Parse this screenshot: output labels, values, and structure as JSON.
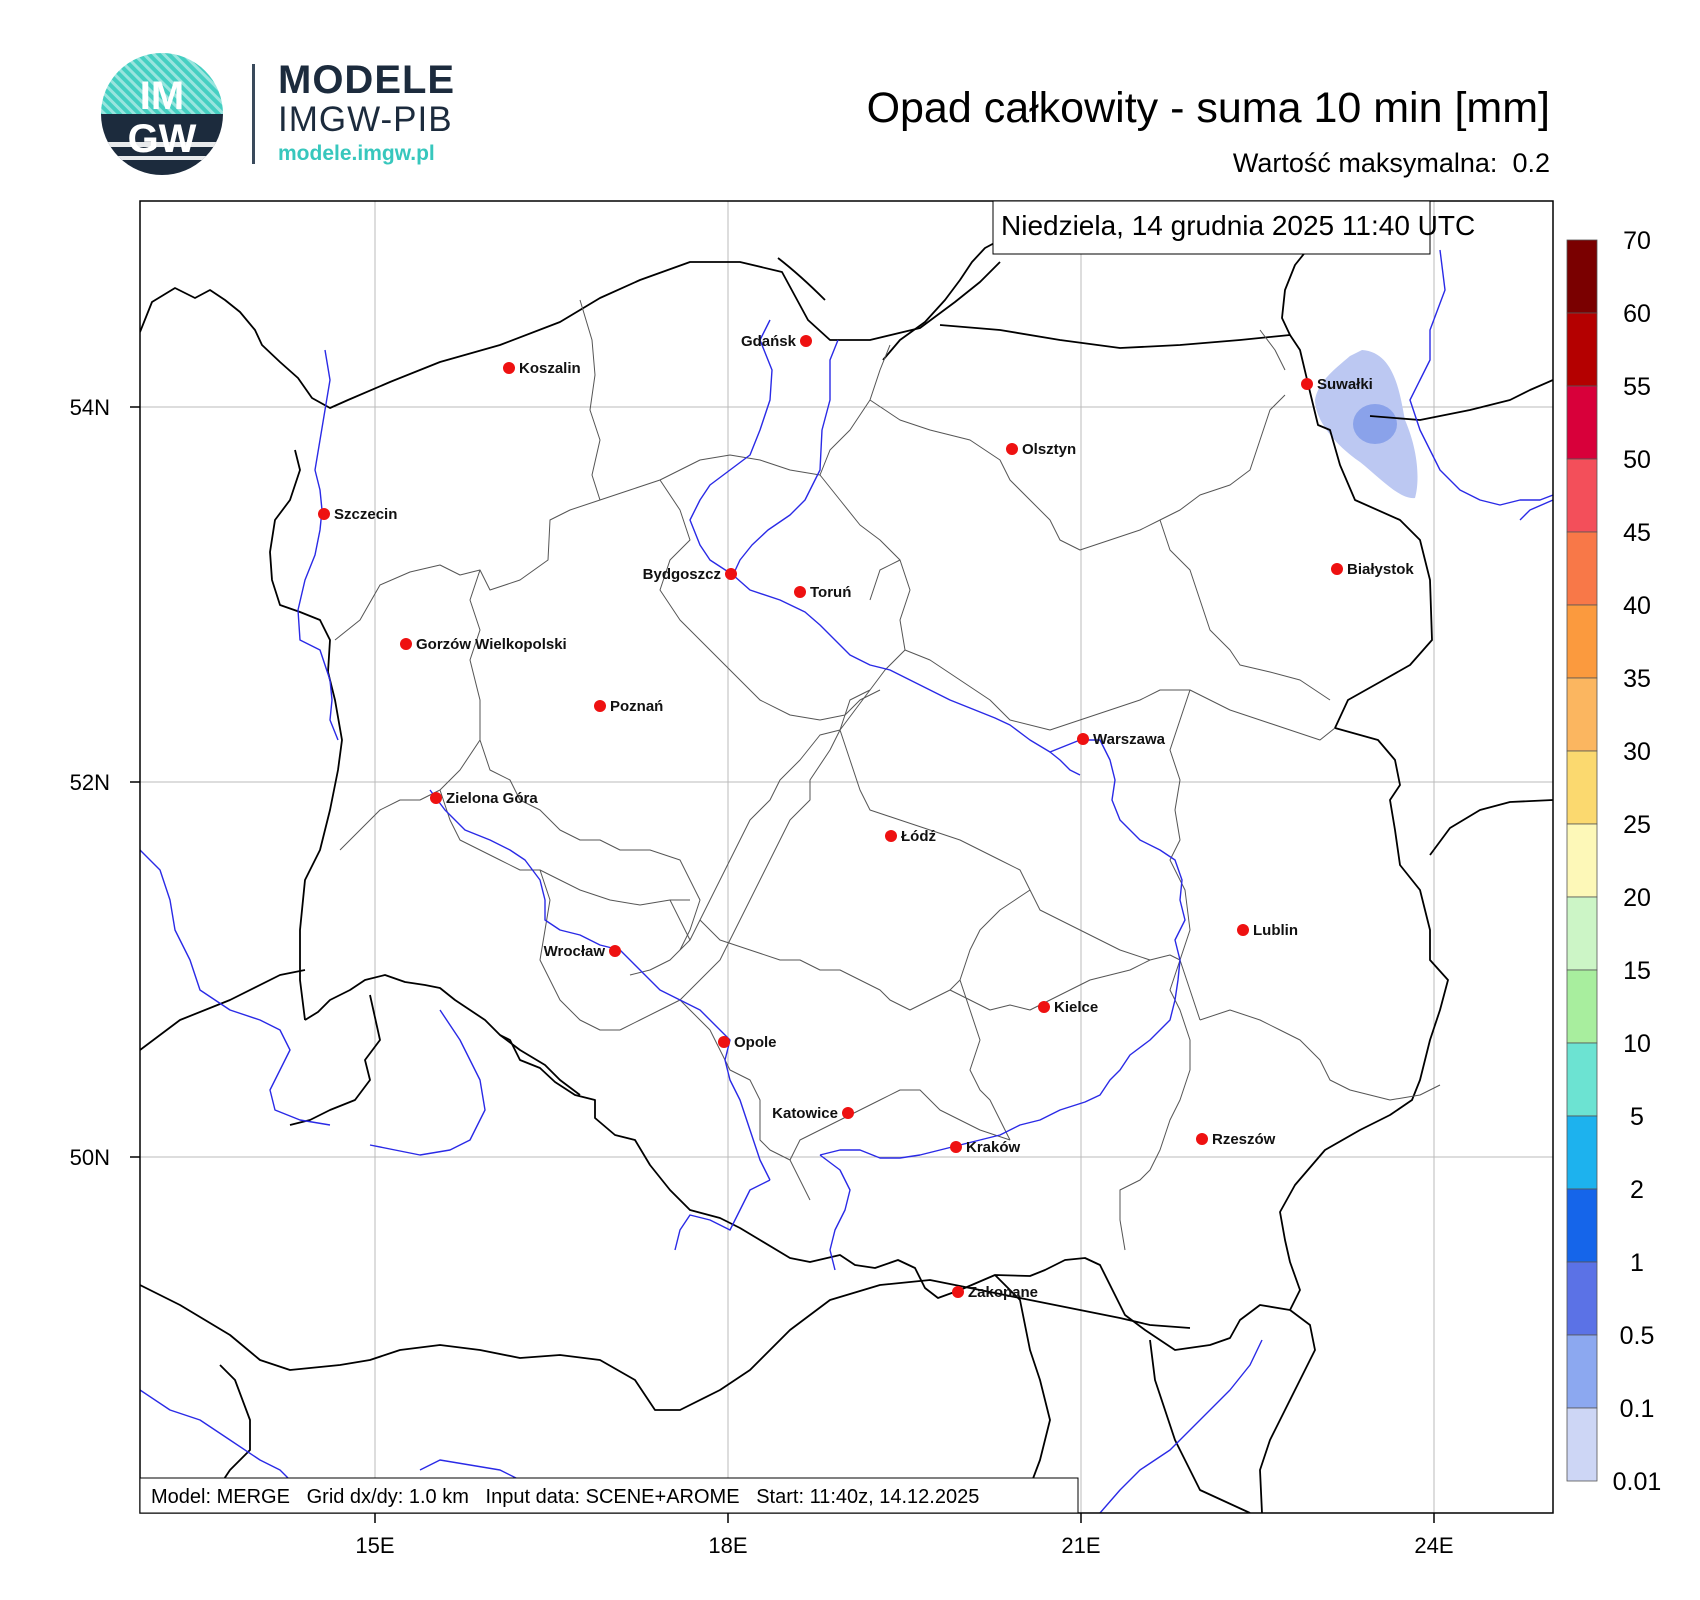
{
  "logo": {
    "badge_top": "IM",
    "badge_bottom": "GW",
    "title": "MODELE",
    "subtitle": "IMGW-PIB",
    "url": "modele.imgw.pl"
  },
  "header": {
    "title": "Opad całkowity - suma 10 min [mm]",
    "max_label": "Wartość maksymalna:",
    "max_value": "0.2"
  },
  "map": {
    "datetime": "Niedziela, 14 grudnia 2025 11:40 UTC",
    "footer": "Model: MERGE   Grid dx/dy: 1.0 km   Input data: SCENE+AROME   Start: 11:40z, 14.12.2025",
    "lat_labels": [
      "54N",
      "52N",
      "50N"
    ],
    "lon_labels": [
      "15E",
      "18E",
      "21E",
      "24E"
    ],
    "cities": [
      {
        "name": "Gdańsk"
      },
      {
        "name": "Koszalin"
      },
      {
        "name": "Szczecin"
      },
      {
        "name": "Suwałki"
      },
      {
        "name": "Olsztyn"
      },
      {
        "name": "Białystok"
      },
      {
        "name": "Bydgoszcz"
      },
      {
        "name": "Toruń"
      },
      {
        "name": "Gorzów Wielkopolski"
      },
      {
        "name": "Poznań"
      },
      {
        "name": "Warszawa"
      },
      {
        "name": "Zielona Góra"
      },
      {
        "name": "Łódź"
      },
      {
        "name": "Lublin"
      },
      {
        "name": "Wrocław"
      },
      {
        "name": "Kielce"
      },
      {
        "name": "Opole"
      },
      {
        "name": "Katowice"
      },
      {
        "name": "Rzeszów"
      },
      {
        "name": "Kraków"
      },
      {
        "name": "Zakopane"
      }
    ],
    "colors": {
      "border": "#000000",
      "voivodeship": "#555555",
      "river": "#2a2ae6",
      "grid": "#bbbbbb",
      "city_dot": "#ee1111",
      "precip_light": "#bcc8f2",
      "precip_core": "#8aa2ea"
    }
  },
  "colorbar": {
    "labels": [
      "70",
      "60",
      "55",
      "50",
      "45",
      "40",
      "35",
      "30",
      "25",
      "20",
      "15",
      "10",
      "5",
      "2",
      "1",
      "0.5",
      "0.1",
      "0.01"
    ],
    "colors": [
      "#7a0000",
      "#b40000",
      "#d8003a",
      "#f34f5a",
      "#f87848",
      "#fb9a3e",
      "#fbb660",
      "#fbd96f",
      "#fdf8b8",
      "#ccf5c6",
      "#a8ee9e",
      "#6ce3d2",
      "#1db2ee",
      "#1565ea",
      "#5b72e6",
      "#8ca8f0",
      "#cdd6f5"
    ]
  }
}
